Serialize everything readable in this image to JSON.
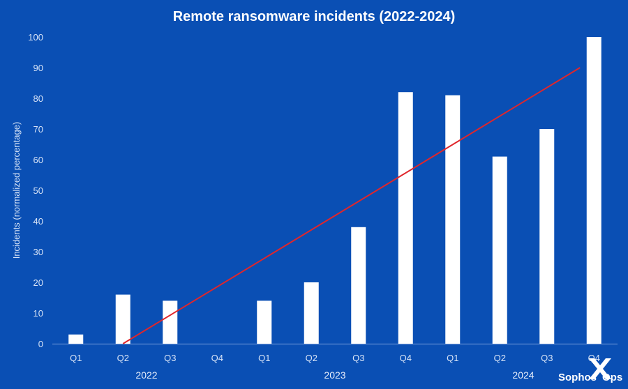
{
  "chart_data": {
    "type": "bar",
    "title": "Remote ransomware incidents (2022-2024)",
    "ylabel": "Incidents (normalized percentage)",
    "xlabel": "",
    "ylim": [
      0,
      100
    ],
    "yticks": [
      0,
      10,
      20,
      30,
      40,
      50,
      60,
      70,
      80,
      90,
      100
    ],
    "categories": [
      "Q1",
      "Q2",
      "Q3",
      "Q4",
      "Q1",
      "Q2",
      "Q3",
      "Q4",
      "Q1",
      "Q2",
      "Q3",
      "Q4"
    ],
    "values": [
      3,
      16,
      14,
      0,
      14,
      20,
      38,
      82,
      81,
      61,
      70,
      100
    ],
    "year_groups": [
      {
        "label": "2022",
        "start": 0,
        "end": 3
      },
      {
        "label": "2023",
        "start": 4,
        "end": 7
      },
      {
        "label": "2024",
        "start": 8,
        "end": 11
      }
    ],
    "trendline": {
      "from_index": 1,
      "from_value": 0,
      "to_index": 11,
      "to_value": 90
    },
    "grid": false,
    "colors": {
      "background": "#0a4fb4",
      "bars": "#ffffff",
      "trendline": "#e0262b",
      "axis": "#7fa3dd"
    }
  },
  "branding": {
    "logo_text_left": "Sophos",
    "logo_text_right": "Ops"
  }
}
